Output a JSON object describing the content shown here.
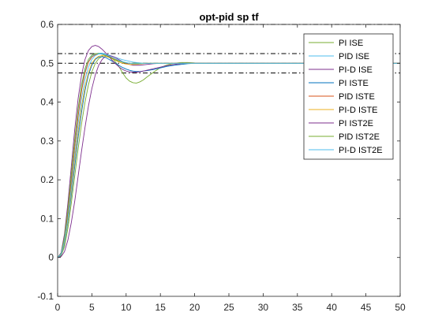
{
  "chart_data": {
    "type": "line",
    "title": "opt-pid sp tf",
    "xlabel": "",
    "ylabel": "",
    "xlim": [
      0,
      50
    ],
    "ylim": [
      -0.1,
      0.6
    ],
    "xticks": [
      "0",
      "5",
      "10",
      "15",
      "20",
      "25",
      "30",
      "35",
      "40",
      "45",
      "50"
    ],
    "yticks": [
      "-0.1",
      "0",
      "0.1",
      "0.2",
      "0.3",
      "0.4",
      "0.5",
      "0.6"
    ],
    "xtick_values": [
      0,
      5,
      10,
      15,
      20,
      25,
      30,
      35,
      40,
      45,
      50
    ],
    "ytick_values": [
      -0.1,
      0,
      0.1,
      0.2,
      0.3,
      0.4,
      0.5,
      0.6
    ],
    "grid": false,
    "legend_position": "top-right",
    "reference_lines": [
      {
        "y": 0.6,
        "style": "dash-dot",
        "color": "#000000"
      },
      {
        "y": 0.525,
        "style": "dash-dot",
        "color": "#000000"
      },
      {
        "y": 0.5,
        "style": "dash-dot",
        "color": "#000000"
      },
      {
        "y": 0.475,
        "style": "dash-dot",
        "color": "#000000"
      }
    ],
    "x": [
      0,
      0.5,
      1,
      1.5,
      2,
      2.5,
      3,
      3.5,
      4,
      4.5,
      5,
      5.5,
      6,
      6.5,
      7,
      7.5,
      8,
      8.5,
      9,
      9.5,
      10,
      10.5,
      11,
      11.5,
      12,
      12.5,
      13,
      14,
      15,
      16,
      17,
      18,
      19,
      20,
      22,
      25,
      30,
      35,
      40,
      45,
      50
    ],
    "series": [
      {
        "name": "PI ISE",
        "color": "#77ac30",
        "values": [
          0,
          0.004,
          0.028,
          0.075,
          0.14,
          0.21,
          0.28,
          0.345,
          0.4,
          0.445,
          0.478,
          0.5,
          0.512,
          0.518,
          0.52,
          0.518,
          0.512,
          0.502,
          0.49,
          0.475,
          0.462,
          0.454,
          0.45,
          0.449,
          0.452,
          0.457,
          0.464,
          0.477,
          0.489,
          0.496,
          0.5,
          0.502,
          0.502,
          0.501,
          0.5,
          0.5,
          0.5,
          0.5,
          0.5,
          0.5,
          0.5
        ]
      },
      {
        "name": "PID ISE",
        "color": "#4dbeee",
        "values": [
          0,
          0.01,
          0.05,
          0.12,
          0.21,
          0.3,
          0.38,
          0.44,
          0.48,
          0.505,
          0.518,
          0.524,
          0.526,
          0.526,
          0.524,
          0.521,
          0.518,
          0.515,
          0.512,
          0.509,
          0.507,
          0.505,
          0.503,
          0.502,
          0.501,
          0.5,
          0.5,
          0.5,
          0.5,
          0.5,
          0.5,
          0.5,
          0.5,
          0.5,
          0.5,
          0.5,
          0.5,
          0.5,
          0.5,
          0.5,
          0.5
        ]
      },
      {
        "name": "PI-D ISE",
        "color": "#7e2f8e",
        "values": [
          0,
          0.002,
          0.015,
          0.045,
          0.09,
          0.145,
          0.21,
          0.275,
          0.335,
          0.39,
          0.435,
          0.47,
          0.495,
          0.51,
          0.518,
          0.52,
          0.518,
          0.514,
          0.509,
          0.504,
          0.5,
          0.497,
          0.495,
          0.495,
          0.495,
          0.496,
          0.497,
          0.499,
          0.5,
          0.5,
          0.5,
          0.5,
          0.5,
          0.5,
          0.5,
          0.5,
          0.5,
          0.5,
          0.5,
          0.5,
          0.5
        ]
      },
      {
        "name": "PI ISTE",
        "color": "#0072bd",
        "values": [
          0,
          0.006,
          0.035,
          0.09,
          0.16,
          0.235,
          0.31,
          0.375,
          0.43,
          0.47,
          0.495,
          0.51,
          0.516,
          0.517,
          0.515,
          0.51,
          0.505,
          0.5,
          0.494,
          0.489,
          0.485,
          0.482,
          0.48,
          0.479,
          0.479,
          0.48,
          0.481,
          0.484,
          0.488,
          0.492,
          0.495,
          0.497,
          0.499,
          0.5,
          0.5,
          0.5,
          0.5,
          0.5,
          0.5,
          0.5,
          0.5
        ]
      },
      {
        "name": "PID ISTE",
        "color": "#d95319",
        "values": [
          0,
          0.009,
          0.045,
          0.11,
          0.195,
          0.285,
          0.365,
          0.43,
          0.475,
          0.503,
          0.516,
          0.522,
          0.524,
          0.524,
          0.522,
          0.518,
          0.514,
          0.51,
          0.506,
          0.503,
          0.501,
          0.5,
          0.499,
          0.499,
          0.499,
          0.5,
          0.5,
          0.5,
          0.5,
          0.5,
          0.5,
          0.5,
          0.5,
          0.5,
          0.5,
          0.5,
          0.5,
          0.5,
          0.5,
          0.5,
          0.5
        ]
      },
      {
        "name": "PI-D ISTE",
        "color": "#edb120",
        "values": [
          0,
          0.007,
          0.038,
          0.095,
          0.17,
          0.25,
          0.325,
          0.39,
          0.44,
          0.476,
          0.5,
          0.512,
          0.518,
          0.52,
          0.518,
          0.515,
          0.511,
          0.507,
          0.503,
          0.5,
          0.498,
          0.497,
          0.497,
          0.497,
          0.498,
          0.499,
          0.5,
          0.5,
          0.5,
          0.5,
          0.5,
          0.5,
          0.5,
          0.5,
          0.5,
          0.5,
          0.5,
          0.5,
          0.5,
          0.5,
          0.5
        ]
      },
      {
        "name": "PI IST2E",
        "color": "#7e2f8e",
        "values": [
          0,
          0.012,
          0.06,
          0.14,
          0.235,
          0.33,
          0.41,
          0.47,
          0.51,
          0.533,
          0.543,
          0.546,
          0.543,
          0.536,
          0.527,
          0.517,
          0.507,
          0.498,
          0.49,
          0.484,
          0.48,
          0.478,
          0.477,
          0.477,
          0.478,
          0.48,
          0.482,
          0.486,
          0.49,
          0.494,
          0.497,
          0.499,
          0.5,
          0.5,
          0.5,
          0.5,
          0.5,
          0.5,
          0.5,
          0.5,
          0.5
        ]
      },
      {
        "name": "PID IST2E",
        "color": "#77ac30",
        "values": [
          0,
          0.01,
          0.052,
          0.125,
          0.215,
          0.305,
          0.385,
          0.445,
          0.487,
          0.51,
          0.521,
          0.525,
          0.525,
          0.523,
          0.52,
          0.516,
          0.512,
          0.508,
          0.505,
          0.503,
          0.501,
          0.5,
          0.5,
          0.5,
          0.5,
          0.5,
          0.5,
          0.5,
          0.5,
          0.5,
          0.5,
          0.5,
          0.5,
          0.5,
          0.5,
          0.5,
          0.5,
          0.5,
          0.5,
          0.5,
          0.5
        ]
      },
      {
        "name": "PI-D IST2E",
        "color": "#4dbeee",
        "values": [
          0,
          0.008,
          0.042,
          0.1,
          0.18,
          0.265,
          0.345,
          0.41,
          0.458,
          0.49,
          0.51,
          0.52,
          0.524,
          0.524,
          0.522,
          0.519,
          0.515,
          0.511,
          0.507,
          0.504,
          0.502,
          0.5,
          0.499,
          0.499,
          0.499,
          0.5,
          0.5,
          0.5,
          0.5,
          0.5,
          0.5,
          0.5,
          0.5,
          0.5,
          0.5,
          0.5,
          0.5,
          0.5,
          0.5,
          0.5,
          0.5
        ]
      }
    ]
  }
}
